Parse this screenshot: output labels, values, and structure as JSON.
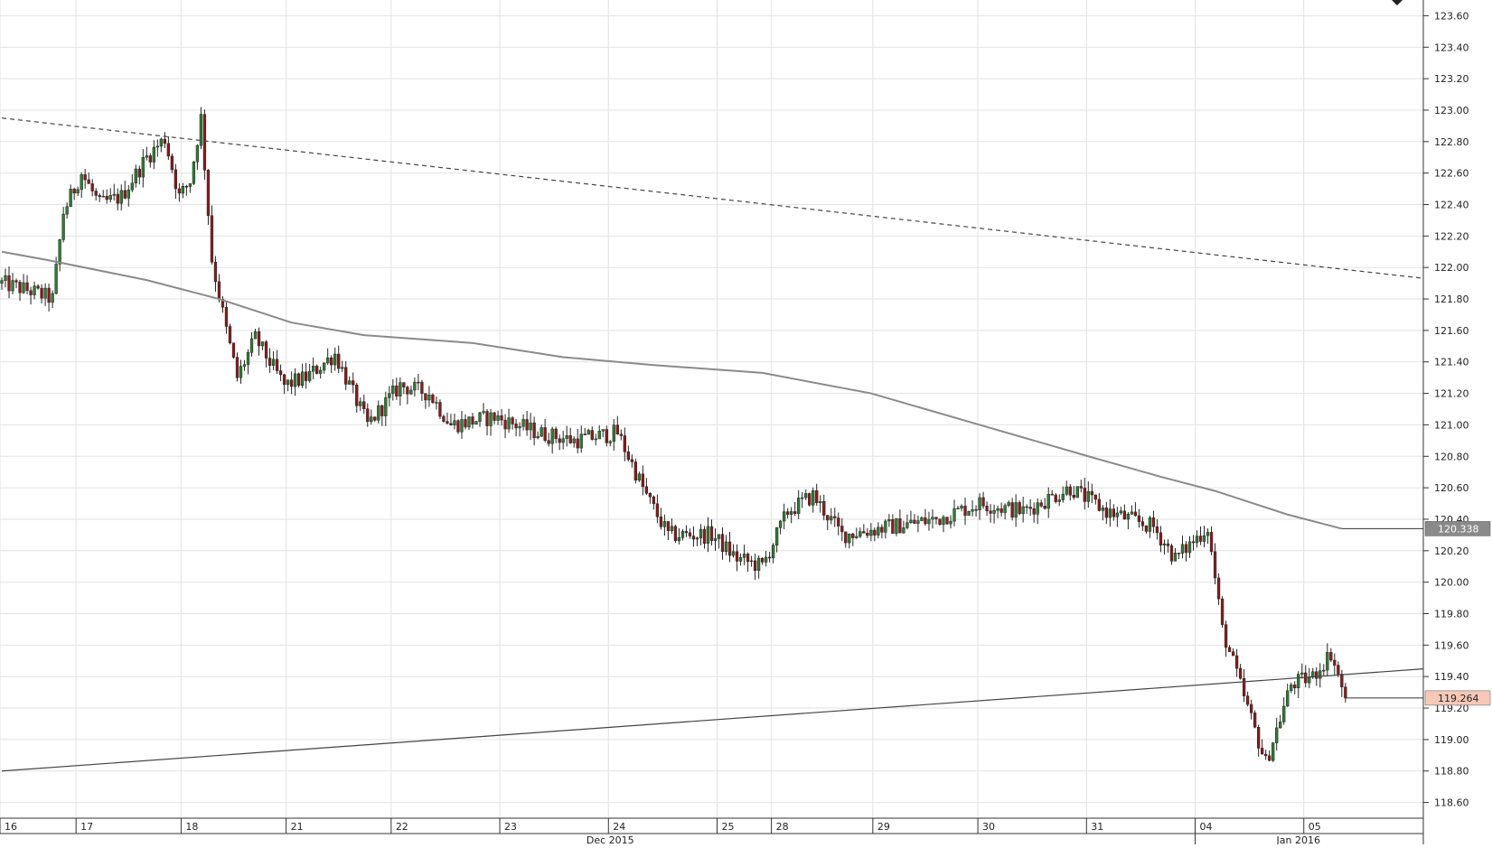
{
  "chart_data": {
    "type": "candlestick",
    "title": "",
    "xlabel": "",
    "ylabel": "",
    "ylim": [
      118.5,
      123.7
    ],
    "y_ticks": [
      "123.60",
      "123.40",
      "123.20",
      "123.00",
      "122.80",
      "122.60",
      "122.40",
      "122.20",
      "122.00",
      "121.80",
      "121.60",
      "121.40",
      "121.20",
      "121.00",
      "120.80",
      "120.60",
      "120.40",
      "120.20",
      "120.00",
      "119.80",
      "119.60",
      "119.40",
      "119.20",
      "119.00",
      "118.80",
      "118.60"
    ],
    "x_day_labels": [
      "16",
      "17",
      "18",
      "21",
      "22",
      "23",
      "24",
      "25",
      "28",
      "29",
      "30",
      "31",
      "04",
      "05"
    ],
    "x_month_labels": [
      "Dec 2015",
      "Jan 2016"
    ],
    "grid": true,
    "colors": {
      "up": "#2e7d32",
      "down": "#8b1a1a",
      "wick": "#222222",
      "ma": "#8a8a8a",
      "trend": "#444444",
      "grid": "#e2e2e2",
      "last_price_bg": "#f7c8b8",
      "ma_label_bg": "#8a8a8a"
    },
    "moving_average": {
      "label": "120.338",
      "points": [
        {
          "i": 0,
          "v": 122.1
        },
        {
          "i": 12,
          "v": 122.05
        },
        {
          "i": 40,
          "v": 121.92
        },
        {
          "i": 60,
          "v": 121.8
        },
        {
          "i": 80,
          "v": 121.65
        },
        {
          "i": 100,
          "v": 121.57
        },
        {
          "i": 130,
          "v": 121.52
        },
        {
          "i": 155,
          "v": 121.43
        },
        {
          "i": 180,
          "v": 121.38
        },
        {
          "i": 210,
          "v": 121.33
        },
        {
          "i": 240,
          "v": 121.2
        },
        {
          "i": 270,
          "v": 121.0
        },
        {
          "i": 300,
          "v": 120.8
        },
        {
          "i": 320,
          "v": 120.67
        },
        {
          "i": 335,
          "v": 120.58
        },
        {
          "i": 355,
          "v": 120.43
        },
        {
          "i": 370,
          "v": 120.34
        }
      ]
    },
    "last_price": {
      "label": "119.264"
    },
    "trendlines": [
      {
        "style": "dashed",
        "start": {
          "i": 0,
          "v": 122.95
        },
        "end": {
          "i": 393,
          "v": 121.93
        }
      },
      {
        "style": "solid",
        "start": {
          "i": 0,
          "v": 118.8
        },
        "end": {
          "i": 393,
          "v": 119.45
        }
      }
    ],
    "candle_count": 372,
    "anchors": [
      {
        "i": 0,
        "v": 121.9
      },
      {
        "i": 8,
        "v": 121.85
      },
      {
        "i": 14,
        "v": 121.8
      },
      {
        "i": 17,
        "v": 122.35
      },
      {
        "i": 22,
        "v": 122.6
      },
      {
        "i": 27,
        "v": 122.4
      },
      {
        "i": 33,
        "v": 122.45
      },
      {
        "i": 40,
        "v": 122.7
      },
      {
        "i": 45,
        "v": 122.82
      },
      {
        "i": 49,
        "v": 122.45
      },
      {
        "i": 52,
        "v": 122.55
      },
      {
        "i": 55,
        "v": 122.95
      },
      {
        "i": 58,
        "v": 122.05
      },
      {
        "i": 62,
        "v": 121.6
      },
      {
        "i": 65,
        "v": 121.3
      },
      {
        "i": 70,
        "v": 121.55
      },
      {
        "i": 78,
        "v": 121.25
      },
      {
        "i": 84,
        "v": 121.3
      },
      {
        "i": 92,
        "v": 121.45
      },
      {
        "i": 101,
        "v": 121.0
      },
      {
        "i": 110,
        "v": 121.25
      },
      {
        "i": 118,
        "v": 121.2
      },
      {
        "i": 124,
        "v": 121.0
      },
      {
        "i": 136,
        "v": 121.05
      },
      {
        "i": 148,
        "v": 120.95
      },
      {
        "i": 158,
        "v": 120.9
      },
      {
        "i": 170,
        "v": 120.95
      },
      {
        "i": 178,
        "v": 120.55
      },
      {
        "i": 184,
        "v": 120.3
      },
      {
        "i": 196,
        "v": 120.3
      },
      {
        "i": 203,
        "v": 120.15
      },
      {
        "i": 210,
        "v": 120.1
      },
      {
        "i": 217,
        "v": 120.45
      },
      {
        "i": 224,
        "v": 120.55
      },
      {
        "i": 232,
        "v": 120.3
      },
      {
        "i": 245,
        "v": 120.35
      },
      {
        "i": 258,
        "v": 120.4
      },
      {
        "i": 270,
        "v": 120.5
      },
      {
        "i": 282,
        "v": 120.45
      },
      {
        "i": 295,
        "v": 120.6
      },
      {
        "i": 305,
        "v": 120.45
      },
      {
        "i": 318,
        "v": 120.35
      },
      {
        "i": 324,
        "v": 120.15
      },
      {
        "i": 333,
        "v": 120.35
      },
      {
        "i": 337,
        "v": 119.7
      },
      {
        "i": 344,
        "v": 119.2
      },
      {
        "i": 349,
        "v": 118.85
      },
      {
        "i": 356,
        "v": 119.35
      },
      {
        "i": 362,
        "v": 119.4
      },
      {
        "i": 367,
        "v": 119.55
      },
      {
        "i": 371,
        "v": 119.264
      }
    ],
    "volatility": 0.055
  }
}
